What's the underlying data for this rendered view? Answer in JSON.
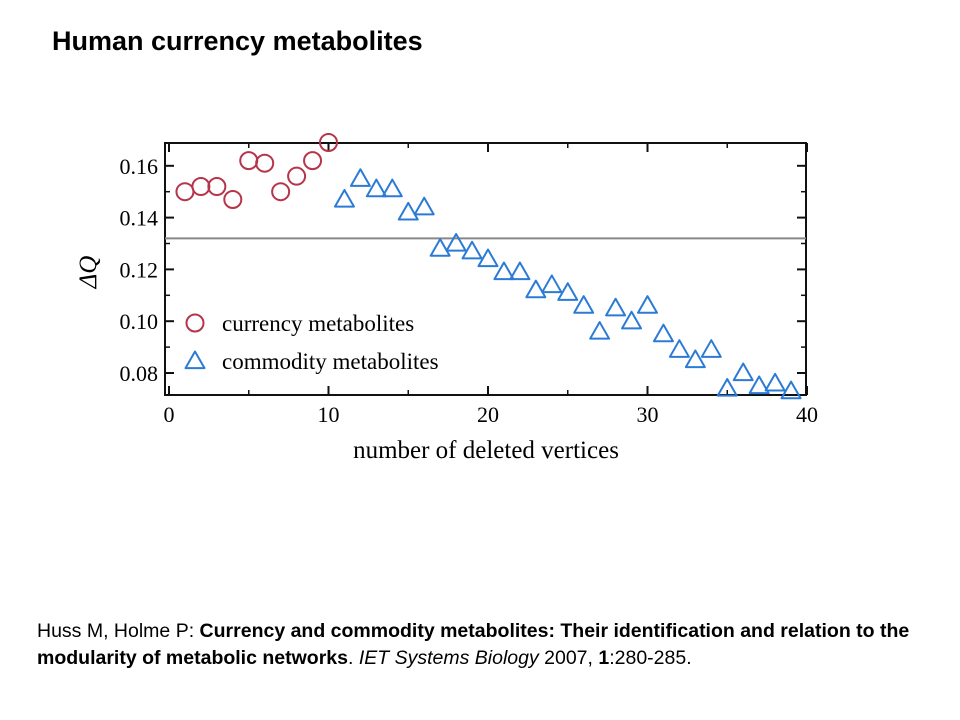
{
  "slide": {
    "title": "Human currency metabolites"
  },
  "chart_data": {
    "type": "scatter",
    "xlabel": "number of deleted vertices",
    "ylabel": "ΔQ",
    "xlim": [
      0,
      40
    ],
    "ylim": [
      0.07,
      0.17
    ],
    "xticks": [
      0,
      10,
      20,
      30,
      40
    ],
    "yticks": [
      0.08,
      0.1,
      0.12,
      0.14,
      0.16
    ],
    "xtick_labels": [
      "0",
      "10",
      "20",
      "30",
      "40"
    ],
    "ytick_labels": [
      "0.08",
      "0.10",
      "0.12",
      "0.14",
      "0.16"
    ],
    "reference_line": {
      "y": 0.132,
      "color": "#888888"
    },
    "legend": {
      "position": "bottom-left"
    },
    "grid": false,
    "series": [
      {
        "name": "currency metabolites",
        "marker": "circle",
        "color": "#b5354a",
        "x": [
          1,
          2,
          3,
          4,
          5,
          6,
          7,
          8,
          9,
          10
        ],
        "y": [
          0.15,
          0.152,
          0.152,
          0.147,
          0.162,
          0.161,
          0.15,
          0.156,
          0.162,
          0.169
        ]
      },
      {
        "name": "commodity metabolites",
        "marker": "triangle",
        "color": "#2b7bd6",
        "x": [
          11,
          12,
          13,
          14,
          15,
          16,
          17,
          18,
          19,
          20,
          21,
          22,
          23,
          24,
          25,
          26,
          27,
          28,
          29,
          30,
          31,
          32,
          33,
          34,
          35,
          36,
          37,
          38,
          39
        ],
        "y": [
          0.147,
          0.155,
          0.151,
          0.151,
          0.142,
          0.144,
          0.128,
          0.13,
          0.127,
          0.124,
          0.119,
          0.119,
          0.112,
          0.114,
          0.111,
          0.106,
          0.096,
          0.105,
          0.1,
          0.106,
          0.095,
          0.089,
          0.085,
          0.089,
          0.074,
          0.08,
          0.075,
          0.076,
          0.073
        ]
      }
    ]
  },
  "citation": {
    "authors": "Huss M, Holme P: ",
    "title": "Currency and commodity metabolites: Their identification and relation to the modularity of metabolic networks",
    "after_title": ". ",
    "journal": "IET Systems Biology",
    "year": " 2007, ",
    "volume": "1",
    "pages": ":280-285."
  }
}
